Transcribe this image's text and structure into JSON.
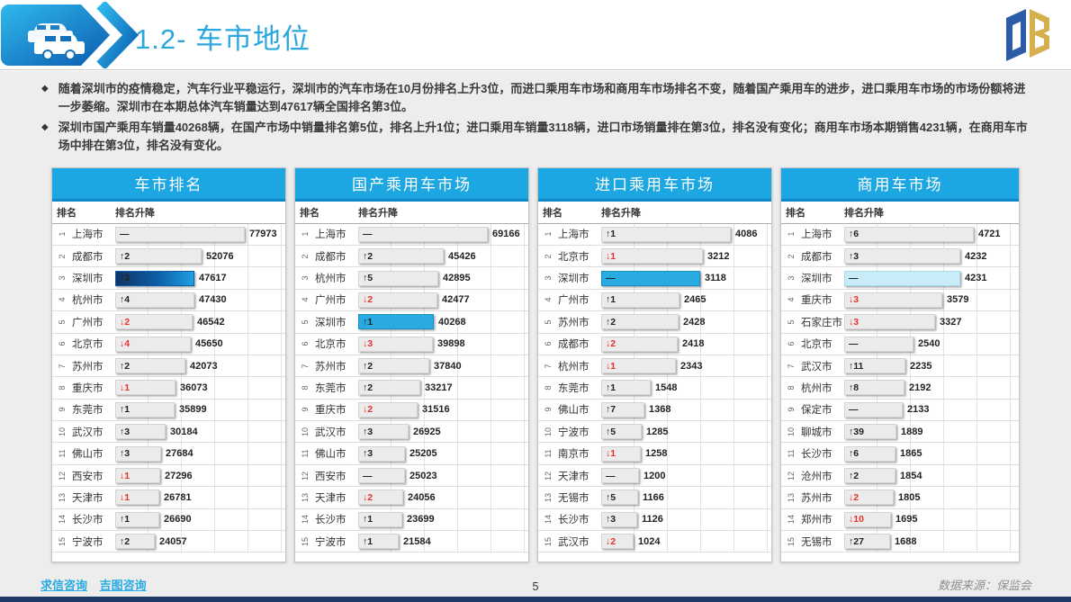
{
  "header": {
    "title": "1.2- 车市地位",
    "logo": "DB"
  },
  "bullets": [
    "随着深圳市的疫情稳定，汽车行业平稳运行，深圳市的汽车市场在10月份排名上升3位，而进口乘用车市场和商用车市场排名不变，随着国产乘用车的进步，进口乘用车市场的市场份额将进一步萎缩。深圳市在本期总体汽车销量达到47617辆全国排名第3位。",
    "深圳市国产乘用车销量40268辆，在国产市场中销量排名第5位，排名上升1位；进口乘用车销量3118辆，进口市场销量排在第3位，排名没有变化；商用车市场本期销售4231辆，在商用车市场中排在第3位，排名没有变化。"
  ],
  "columns": {
    "rank": "排名",
    "change": "排名升降"
  },
  "colors": {
    "accent": "#1CA7E2",
    "highlight_solid": "#29ABE2",
    "highlight_light": "#C9EDF8",
    "down_red": "#E8312A",
    "bottom_strip": "#1E3A66"
  },
  "chart_data": [
    {
      "type": "table",
      "title": "车市排名",
      "rows": [
        {
          "rank": "1",
          "city": "上海市",
          "change": "—",
          "value": 77973
        },
        {
          "rank": "2",
          "city": "成都市",
          "change": "↑2",
          "value": 52076
        },
        {
          "rank": "3",
          "city": "深圳市",
          "change": "↑3",
          "value": 47617,
          "hl": "gradient"
        },
        {
          "rank": "4",
          "city": "杭州市",
          "change": "↑4",
          "value": 47430
        },
        {
          "rank": "5",
          "city": "广州市",
          "change": "↓2",
          "value": 46542
        },
        {
          "rank": "6",
          "city": "北京市",
          "change": "↓4",
          "value": 45650
        },
        {
          "rank": "7",
          "city": "苏州市",
          "change": "↑2",
          "value": 42073
        },
        {
          "rank": "8",
          "city": "重庆市",
          "change": "↓1",
          "value": 36073
        },
        {
          "rank": "9",
          "city": "东莞市",
          "change": "↑1",
          "value": 35899
        },
        {
          "rank": "10",
          "city": "武汉市",
          "change": "↑3",
          "value": 30184
        },
        {
          "rank": "11",
          "city": "佛山市",
          "change": "↑3",
          "value": 27684
        },
        {
          "rank": "12",
          "city": "西安市",
          "change": "↓1",
          "value": 27296
        },
        {
          "rank": "13",
          "city": "天津市",
          "change": "↓1",
          "value": 26781
        },
        {
          "rank": "14",
          "city": "长沙市",
          "change": "↑1",
          "value": 26690
        },
        {
          "rank": "15",
          "city": "宁波市",
          "change": "↑2",
          "value": 24057
        }
      ]
    },
    {
      "type": "table",
      "title": "国产乘用车市场",
      "rows": [
        {
          "rank": "1",
          "city": "上海市",
          "change": "—",
          "value": 69166
        },
        {
          "rank": "2",
          "city": "成都市",
          "change": "↑2",
          "value": 45426
        },
        {
          "rank": "3",
          "city": "杭州市",
          "change": "↑5",
          "value": 42895
        },
        {
          "rank": "4",
          "city": "广州市",
          "change": "↓2",
          "value": 42477
        },
        {
          "rank": "5",
          "city": "深圳市",
          "change": "↑1",
          "value": 40268,
          "hl": "solid"
        },
        {
          "rank": "6",
          "city": "北京市",
          "change": "↓3",
          "value": 39898
        },
        {
          "rank": "7",
          "city": "苏州市",
          "change": "↑2",
          "value": 37840
        },
        {
          "rank": "8",
          "city": "东莞市",
          "change": "↑2",
          "value": 33217
        },
        {
          "rank": "9",
          "city": "重庆市",
          "change": "↓2",
          "value": 31516
        },
        {
          "rank": "10",
          "city": "武汉市",
          "change": "↑3",
          "value": 26925
        },
        {
          "rank": "11",
          "city": "佛山市",
          "change": "↑3",
          "value": 25205
        },
        {
          "rank": "12",
          "city": "西安市",
          "change": "—",
          "value": 25023
        },
        {
          "rank": "13",
          "city": "天津市",
          "change": "↓2",
          "value": 24056
        },
        {
          "rank": "14",
          "city": "长沙市",
          "change": "↑1",
          "value": 23699
        },
        {
          "rank": "15",
          "city": "宁波市",
          "change": "↑1",
          "value": 21584
        }
      ]
    },
    {
      "type": "table",
      "title": "进口乘用车市场",
      "rows": [
        {
          "rank": "1",
          "city": "上海市",
          "change": "↑1",
          "value": 4086
        },
        {
          "rank": "2",
          "city": "北京市",
          "change": "↓1",
          "value": 3212
        },
        {
          "rank": "3",
          "city": "深圳市",
          "change": "—",
          "value": 3118,
          "hl": "solid"
        },
        {
          "rank": "4",
          "city": "广州市",
          "change": "↑1",
          "value": 2465
        },
        {
          "rank": "5",
          "city": "苏州市",
          "change": "↑2",
          "value": 2428
        },
        {
          "rank": "6",
          "city": "成都市",
          "change": "↓2",
          "value": 2418
        },
        {
          "rank": "7",
          "city": "杭州市",
          "change": "↓1",
          "value": 2343
        },
        {
          "rank": "8",
          "city": "东莞市",
          "change": "↑1",
          "value": 1548
        },
        {
          "rank": "9",
          "city": "佛山市",
          "change": "↑7",
          "value": 1368
        },
        {
          "rank": "10",
          "city": "宁波市",
          "change": "↑5",
          "value": 1285
        },
        {
          "rank": "11",
          "city": "南京市",
          "change": "↓1",
          "value": 1258
        },
        {
          "rank": "12",
          "city": "天津市",
          "change": "—",
          "value": 1200
        },
        {
          "rank": "13",
          "city": "无锡市",
          "change": "↑5",
          "value": 1166
        },
        {
          "rank": "14",
          "city": "长沙市",
          "change": "↑3",
          "value": 1126
        },
        {
          "rank": "15",
          "city": "武汉市",
          "change": "↓2",
          "value": 1024
        }
      ]
    },
    {
      "type": "table",
      "title": "商用车市场",
      "rows": [
        {
          "rank": "1",
          "city": "上海市",
          "change": "↑6",
          "value": 4721
        },
        {
          "rank": "2",
          "city": "成都市",
          "change": "↑3",
          "value": 4232
        },
        {
          "rank": "3",
          "city": "深圳市",
          "change": "—",
          "value": 4231,
          "hl": "light"
        },
        {
          "rank": "4",
          "city": "重庆市",
          "change": "↓3",
          "value": 3579
        },
        {
          "rank": "5",
          "city": "石家庄市",
          "change": "↓3",
          "value": 3327
        },
        {
          "rank": "6",
          "city": "北京市",
          "change": "—",
          "value": 2540
        },
        {
          "rank": "7",
          "city": "武汉市",
          "change": "↑11",
          "value": 2235
        },
        {
          "rank": "8",
          "city": "杭州市",
          "change": "↑8",
          "value": 2192
        },
        {
          "rank": "9",
          "city": "保定市",
          "change": "—",
          "value": 2133
        },
        {
          "rank": "10",
          "city": "聊城市",
          "change": "↑39",
          "value": 1889
        },
        {
          "rank": "11",
          "city": "长沙市",
          "change": "↑6",
          "value": 1865
        },
        {
          "rank": "12",
          "city": "沧州市",
          "change": "↑2",
          "value": 1854
        },
        {
          "rank": "13",
          "city": "苏州市",
          "change": "↓2",
          "value": 1805
        },
        {
          "rank": "14",
          "city": "郑州市",
          "change": "↓10",
          "value": 1695
        },
        {
          "rank": "15",
          "city": "无锡市",
          "change": "↑27",
          "value": 1688
        }
      ]
    }
  ],
  "footer": {
    "links": [
      "求信咨询",
      "吉图咨询"
    ],
    "page": "5",
    "source": "数据来源：保监会"
  }
}
